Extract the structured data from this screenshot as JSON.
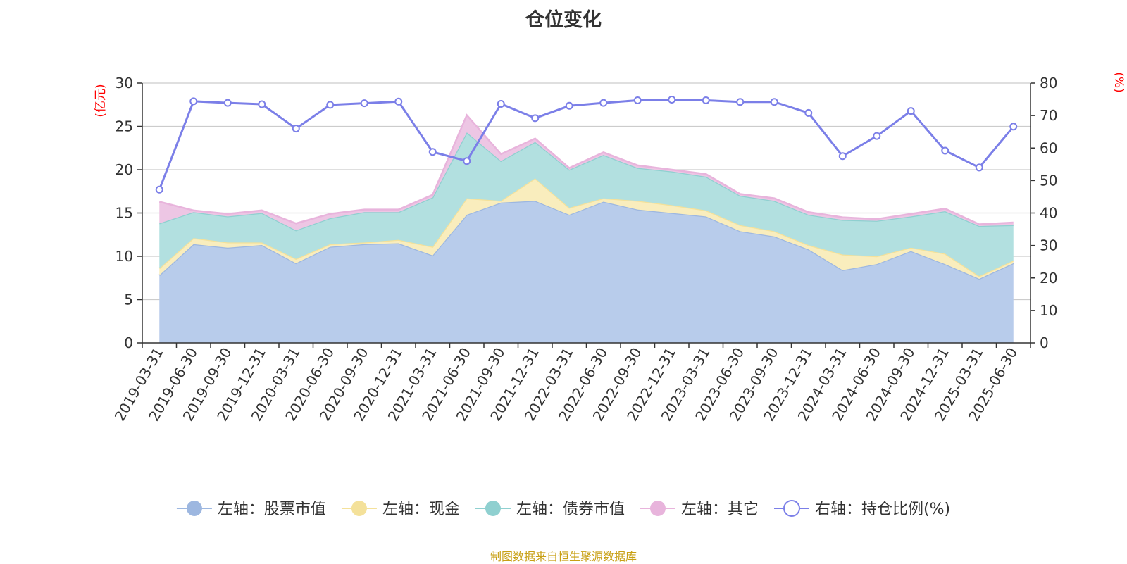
{
  "chart_data": {
    "type": "area",
    "title": "仓位变化",
    "categories": [
      "2019-03-31",
      "2019-06-30",
      "2019-09-30",
      "2019-12-31",
      "2020-03-31",
      "2020-06-30",
      "2020-09-30",
      "2020-12-31",
      "2021-03-31",
      "2021-06-30",
      "2021-09-30",
      "2021-12-31",
      "2022-03-31",
      "2022-06-30",
      "2022-09-30",
      "2022-12-31",
      "2023-03-31",
      "2023-06-30",
      "2023-09-30",
      "2023-12-31",
      "2024-03-31",
      "2024-06-30",
      "2024-09-30",
      "2024-12-31",
      "2025-03-31",
      "2025-06-30"
    ],
    "left_axis": {
      "unit": "(亿元)",
      "ylim": [
        0,
        30
      ],
      "ticks": [
        0,
        5,
        10,
        15,
        20,
        25,
        30
      ]
    },
    "right_axis": {
      "unit": "(%)",
      "ylim": [
        0,
        80
      ],
      "ticks": [
        0,
        10,
        20,
        30,
        40,
        50,
        60,
        70,
        80
      ]
    },
    "stacked": true,
    "series": [
      {
        "name": "左轴：股票市值",
        "axis": "left",
        "color": "#9db7e0",
        "fill": "#b8cceb",
        "values": [
          7.8,
          11.4,
          11.0,
          11.3,
          9.2,
          11.1,
          11.4,
          11.5,
          10.1,
          14.8,
          16.2,
          16.4,
          14.8,
          16.3,
          15.4,
          15.0,
          14.6,
          12.9,
          12.3,
          10.8,
          8.4,
          9.1,
          10.6,
          9.1,
          7.4,
          9.2
        ]
      },
      {
        "name": "左轴：现金",
        "axis": "left",
        "color": "#f4e19a",
        "fill": "#f9edbd",
        "values": [
          0.8,
          0.7,
          0.6,
          0.3,
          0.5,
          0.3,
          0.2,
          0.4,
          1.0,
          1.9,
          0.2,
          2.6,
          0.8,
          0.4,
          1.0,
          0.9,
          0.7,
          0.7,
          0.6,
          0.5,
          1.8,
          0.9,
          0.4,
          1.2,
          0.3,
          0.3
        ]
      },
      {
        "name": "左轴：债券市值",
        "axis": "left",
        "color": "#8fd0d0",
        "fill": "#b2e0e0",
        "values": [
          5.2,
          3.0,
          3.0,
          3.4,
          3.3,
          3.0,
          3.5,
          3.2,
          5.7,
          7.6,
          4.6,
          4.2,
          4.4,
          5.0,
          3.8,
          3.9,
          3.9,
          3.4,
          3.5,
          3.5,
          4.0,
          4.1,
          3.6,
          4.9,
          5.8,
          4.1
        ]
      },
      {
        "name": "左轴：其它",
        "axis": "left",
        "color": "#e8b4dc",
        "fill": "#edc6e4",
        "values": [
          2.5,
          0.2,
          0.3,
          0.3,
          0.8,
          0.5,
          0.3,
          0.3,
          0.3,
          2.0,
          0.8,
          0.4,
          0.2,
          0.3,
          0.3,
          0.2,
          0.3,
          0.2,
          0.3,
          0.3,
          0.3,
          0.2,
          0.3,
          0.3,
          0.2,
          0.3
        ]
      },
      {
        "name": "右轴：持仓比例(%)",
        "axis": "right",
        "type": "line",
        "color": "#7b7fe8",
        "values": [
          47.2,
          74.4,
          73.9,
          73.5,
          66.0,
          73.3,
          73.8,
          74.3,
          58.8,
          56.0,
          73.6,
          69.2,
          73.0,
          73.9,
          74.7,
          74.9,
          74.7,
          74.2,
          74.2,
          70.8,
          57.5,
          63.7,
          71.4,
          59.2,
          54.0,
          66.6
        ]
      }
    ],
    "grid": true,
    "legend_position": "bottom"
  },
  "source_note": "制图数据来自恒生聚源数据库"
}
